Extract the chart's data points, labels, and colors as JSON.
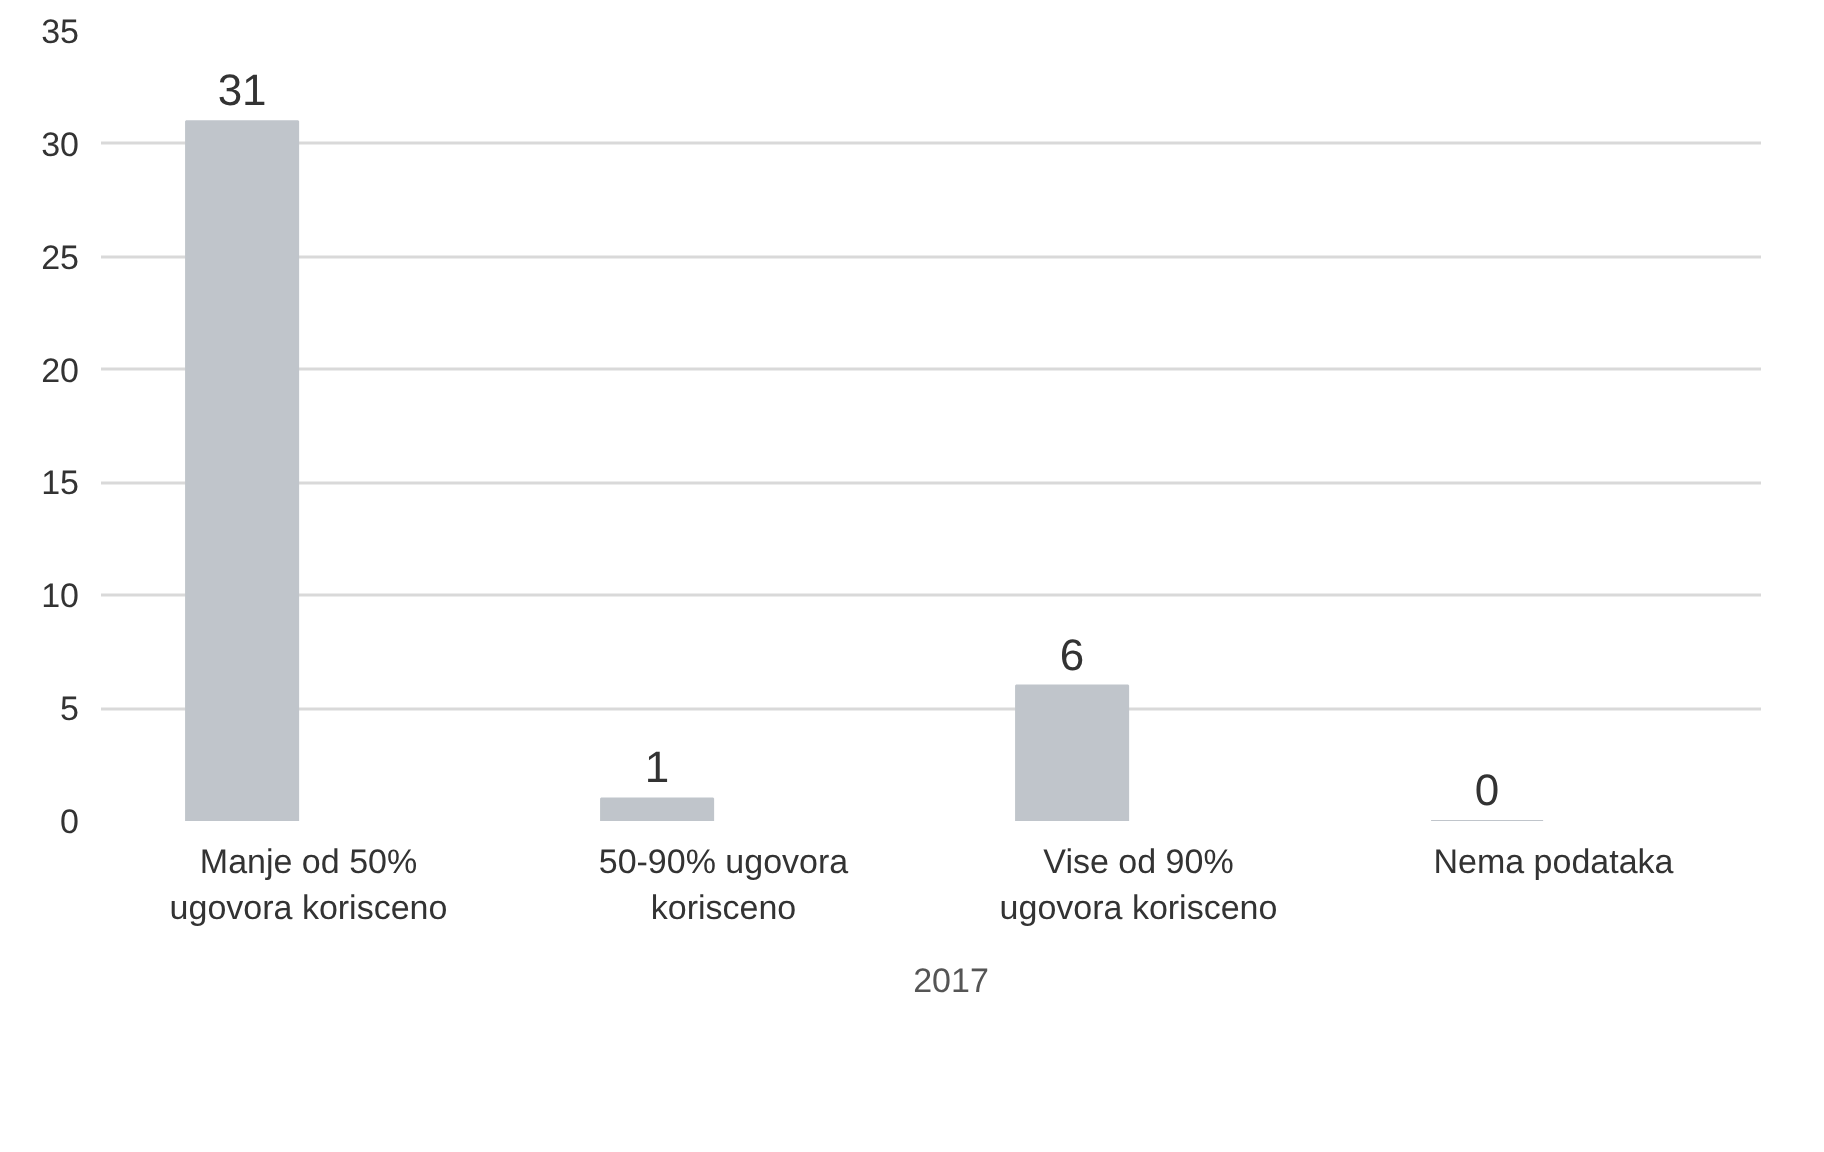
{
  "chart_data": {
    "type": "bar",
    "categories": [
      "Manje od 50% ugovora korisceno",
      "50-90% ugovora korisceno",
      "Vise od 90% ugovora korisceno",
      "Nema podataka"
    ],
    "series": [
      {
        "name": "2017",
        "color": "#c0c5cb",
        "values": [
          31,
          1,
          6,
          0
        ]
      }
    ],
    "ylim": [
      0,
      35
    ],
    "yticks": [
      0,
      5,
      10,
      15,
      20,
      25,
      30,
      35
    ],
    "grid": "y",
    "legend": "bottom",
    "data_labels": true
  }
}
